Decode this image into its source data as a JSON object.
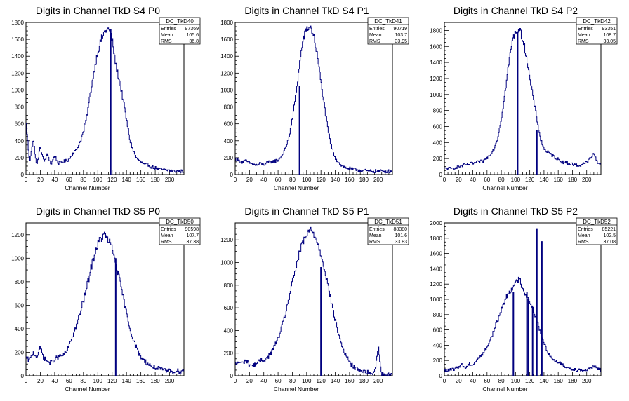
{
  "chart_data": [
    {
      "type": "histogram",
      "title": "Digits in Channel TkD S4 P0",
      "xlabel": "Channel Number",
      "xlim": [
        0,
        220
      ],
      "ylim": [
        0,
        1800
      ],
      "xticks": [
        0,
        20,
        40,
        60,
        80,
        100,
        120,
        140,
        160,
        180,
        200
      ],
      "yticks": [
        200,
        400,
        600,
        800,
        1000,
        1200,
        1400,
        1600,
        1800
      ],
      "stats": {
        "name": "DC_TkD40",
        "Entries": "97369",
        "Mean": "105.6",
        "RMS": "36.8"
      },
      "shape": {
        "mu": 112,
        "sigma": 19.5,
        "peak": 1720,
        "base": 60
      },
      "x": [
        0,
        5,
        10,
        15,
        20,
        25,
        30,
        35,
        40,
        45,
        50,
        55,
        60,
        65,
        70,
        75,
        80,
        85,
        90,
        95,
        100,
        105,
        110,
        115,
        120,
        125,
        130,
        135,
        140,
        145,
        150,
        155,
        160,
        165,
        170,
        175,
        180,
        185,
        190,
        195,
        200,
        205,
        210,
        215,
        220
      ],
      "values": [
        640,
        150,
        420,
        100,
        330,
        150,
        240,
        120,
        230,
        130,
        150,
        160,
        180,
        250,
        290,
        380,
        500,
        700,
        980,
        1230,
        1450,
        1600,
        1700,
        1720,
        1600,
        1300,
        1120,
        900,
        650,
        400,
        270,
        180,
        150,
        110,
        120,
        90,
        80,
        60,
        60,
        50,
        50,
        40,
        40,
        40,
        40
      ],
      "lines": [
        {
          "x": 118,
          "y": 1720
        }
      ]
    },
    {
      "type": "histogram",
      "title": "Digits in Channel TkD S4 P1",
      "xlabel": "Channel Number",
      "xlim": [
        0,
        220
      ],
      "ylim": [
        0,
        1800
      ],
      "xticks": [
        0,
        20,
        40,
        60,
        80,
        100,
        120,
        140,
        160,
        180,
        200
      ],
      "yticks": [
        200,
        400,
        600,
        800,
        1000,
        1200,
        1400,
        1600,
        1800
      ],
      "stats": {
        "name": "DC_TkD41",
        "Entries": "90719",
        "Mean": "103.7",
        "RMS": "33.95"
      },
      "shape": {
        "mu": 104,
        "sigma": 17,
        "peak": 1750,
        "base": 60
      },
      "x": [
        0,
        5,
        10,
        15,
        20,
        25,
        30,
        35,
        40,
        45,
        50,
        55,
        60,
        65,
        70,
        75,
        80,
        85,
        90,
        95,
        100,
        105,
        110,
        115,
        120,
        125,
        130,
        135,
        140,
        145,
        150,
        155,
        160,
        165,
        170,
        175,
        180,
        185,
        190,
        195,
        200,
        205,
        210,
        215,
        220
      ],
      "values": [
        190,
        160,
        150,
        160,
        140,
        120,
        110,
        130,
        120,
        140,
        150,
        160,
        170,
        220,
        300,
        430,
        650,
        950,
        1300,
        1600,
        1720,
        1750,
        1650,
        1400,
        1100,
        800,
        520,
        320,
        200,
        140,
        100,
        80,
        70,
        60,
        60,
        50,
        50,
        40,
        40,
        40,
        40,
        40,
        40,
        40,
        40
      ],
      "lines": [
        {
          "x": 90,
          "y": 1050
        }
      ]
    },
    {
      "type": "histogram",
      "title": "Digits in Channel TkD S4 P2",
      "xlabel": "Channel Number",
      "xlim": [
        0,
        220
      ],
      "ylim": [
        0,
        1900
      ],
      "xticks": [
        0,
        20,
        40,
        60,
        80,
        100,
        120,
        140,
        160,
        180,
        200
      ],
      "yticks": [
        200,
        400,
        600,
        800,
        1000,
        1200,
        1400,
        1600,
        1800
      ],
      "stats": {
        "name": "DC_TkD42",
        "Entries": "93351",
        "Mean": "108.7",
        "RMS": "33.05"
      },
      "shape": {
        "mu": 105,
        "sigma": 16,
        "peak": 1820,
        "base": 60
      },
      "x": [
        0,
        5,
        10,
        15,
        20,
        25,
        30,
        35,
        40,
        45,
        50,
        55,
        60,
        65,
        70,
        75,
        80,
        85,
        90,
        95,
        100,
        105,
        110,
        115,
        120,
        125,
        130,
        135,
        140,
        145,
        150,
        155,
        160,
        165,
        170,
        175,
        180,
        185,
        190,
        195,
        200,
        205,
        210,
        215,
        220
      ],
      "values": [
        70,
        80,
        70,
        90,
        100,
        110,
        120,
        130,
        140,
        150,
        160,
        170,
        210,
        260,
        330,
        460,
        700,
        1000,
        1350,
        1650,
        1780,
        1820,
        1700,
        1500,
        1200,
        950,
        700,
        450,
        320,
        280,
        250,
        220,
        190,
        160,
        150,
        140,
        130,
        120,
        110,
        140,
        150,
        200,
        260,
        160,
        120
      ],
      "lines": [
        {
          "x": 103,
          "y": 1790
        },
        {
          "x": 130,
          "y": 560
        }
      ]
    },
    {
      "type": "histogram",
      "title": "Digits in Channel TkD S5 P0",
      "xlabel": "Channel Number",
      "xlim": [
        0,
        220
      ],
      "ylim": [
        0,
        1300
      ],
      "xticks": [
        0,
        20,
        40,
        60,
        80,
        100,
        120,
        140,
        160,
        180,
        200
      ],
      "yticks": [
        200,
        400,
        600,
        800,
        1000,
        1200
      ],
      "stats": {
        "name": "DC_TkD50",
        "Entries": "90598",
        "Mean": "107.7",
        "RMS": "37.38"
      },
      "shape": {
        "mu": 112,
        "sigma": 26,
        "peak": 1180,
        "base": 50
      },
      "x": [
        0,
        5,
        10,
        15,
        20,
        25,
        30,
        35,
        40,
        45,
        50,
        55,
        60,
        65,
        70,
        75,
        80,
        85,
        90,
        95,
        100,
        105,
        110,
        115,
        120,
        125,
        130,
        135,
        140,
        145,
        150,
        155,
        160,
        165,
        170,
        175,
        180,
        185,
        190,
        195,
        200,
        205,
        210,
        215,
        220
      ],
      "values": [
        150,
        130,
        200,
        160,
        240,
        150,
        120,
        110,
        140,
        160,
        170,
        190,
        250,
        340,
        420,
        520,
        640,
        760,
        900,
        1020,
        1120,
        1170,
        1200,
        1150,
        1080,
        960,
        820,
        680,
        530,
        400,
        300,
        220,
        160,
        130,
        100,
        80,
        70,
        60,
        50,
        40,
        40,
        40,
        40,
        40,
        50
      ],
      "lines": [
        {
          "x": 125,
          "y": 1000
        }
      ]
    },
    {
      "type": "histogram",
      "title": "Digits in Channel TkD S5 P1",
      "xlabel": "Channel Number",
      "xlim": [
        0,
        220
      ],
      "ylim": [
        0,
        1350
      ],
      "xticks": [
        0,
        20,
        40,
        60,
        80,
        100,
        120,
        140,
        160,
        180,
        200
      ],
      "yticks": [
        200,
        400,
        600,
        800,
        1000,
        1200
      ],
      "stats": {
        "name": "DC_TkD51",
        "Entries": "88380",
        "Mean": "101.6",
        "RMS": "33.83"
      },
      "shape": {
        "mu": 104,
        "sigma": 22,
        "peak": 1290,
        "base": 50
      },
      "x": [
        0,
        5,
        10,
        15,
        20,
        25,
        30,
        35,
        40,
        45,
        50,
        55,
        60,
        65,
        70,
        75,
        80,
        85,
        90,
        95,
        100,
        105,
        110,
        115,
        120,
        125,
        130,
        135,
        140,
        145,
        150,
        155,
        160,
        165,
        170,
        175,
        180,
        185,
        190,
        195,
        200,
        205,
        210,
        215,
        220
      ],
      "values": [
        100,
        120,
        110,
        140,
        100,
        90,
        110,
        130,
        140,
        160,
        200,
        260,
        330,
        420,
        540,
        680,
        820,
        960,
        1080,
        1180,
        1240,
        1290,
        1260,
        1180,
        1080,
        950,
        800,
        640,
        490,
        360,
        250,
        180,
        120,
        80,
        60,
        50,
        40,
        30,
        20,
        20,
        260,
        20,
        10,
        10,
        10
      ],
      "lines": [
        {
          "x": 120,
          "y": 960
        }
      ]
    },
    {
      "type": "histogram",
      "title": "Digits in Channel TkD S5 P2",
      "xlabel": "Channel Number",
      "xlim": [
        0,
        220
      ],
      "ylim": [
        0,
        2000
      ],
      "xticks": [
        0,
        20,
        40,
        60,
        80,
        100,
        120,
        140,
        160,
        180,
        200
      ],
      "yticks": [
        200,
        400,
        600,
        800,
        1000,
        1200,
        1400,
        1600,
        1800,
        2000
      ],
      "stats": {
        "name": "DC_TkD52",
        "Entries": "85221",
        "Mean": "102.5",
        "RMS": "37.08"
      },
      "shape": {
        "mu": 100,
        "sigma": 22,
        "peak": 1200,
        "base": 60
      },
      "x": [
        0,
        5,
        10,
        15,
        20,
        25,
        30,
        35,
        40,
        45,
        50,
        55,
        60,
        65,
        70,
        75,
        80,
        85,
        90,
        95,
        100,
        105,
        110,
        115,
        120,
        125,
        130,
        135,
        140,
        145,
        150,
        155,
        160,
        165,
        170,
        175,
        180,
        185,
        190,
        195,
        200,
        205,
        210,
        215,
        220
      ],
      "values": [
        60,
        70,
        80,
        90,
        120,
        150,
        100,
        160,
        140,
        200,
        250,
        300,
        380,
        480,
        600,
        730,
        860,
        980,
        1080,
        1150,
        1200,
        1280,
        1150,
        1050,
        980,
        860,
        720,
        560,
        430,
        320,
        240,
        200,
        180,
        150,
        120,
        100,
        90,
        80,
        80,
        70,
        80,
        90,
        120,
        100,
        70
      ],
      "lines": [
        {
          "x": 97,
          "y": 1100
        },
        {
          "x": 116,
          "y": 1100
        },
        {
          "x": 118,
          "y": 1000
        },
        {
          "x": 124,
          "y": 900
        },
        {
          "x": 130,
          "y": 1930
        },
        {
          "x": 137,
          "y": 1760
        }
      ]
    }
  ]
}
